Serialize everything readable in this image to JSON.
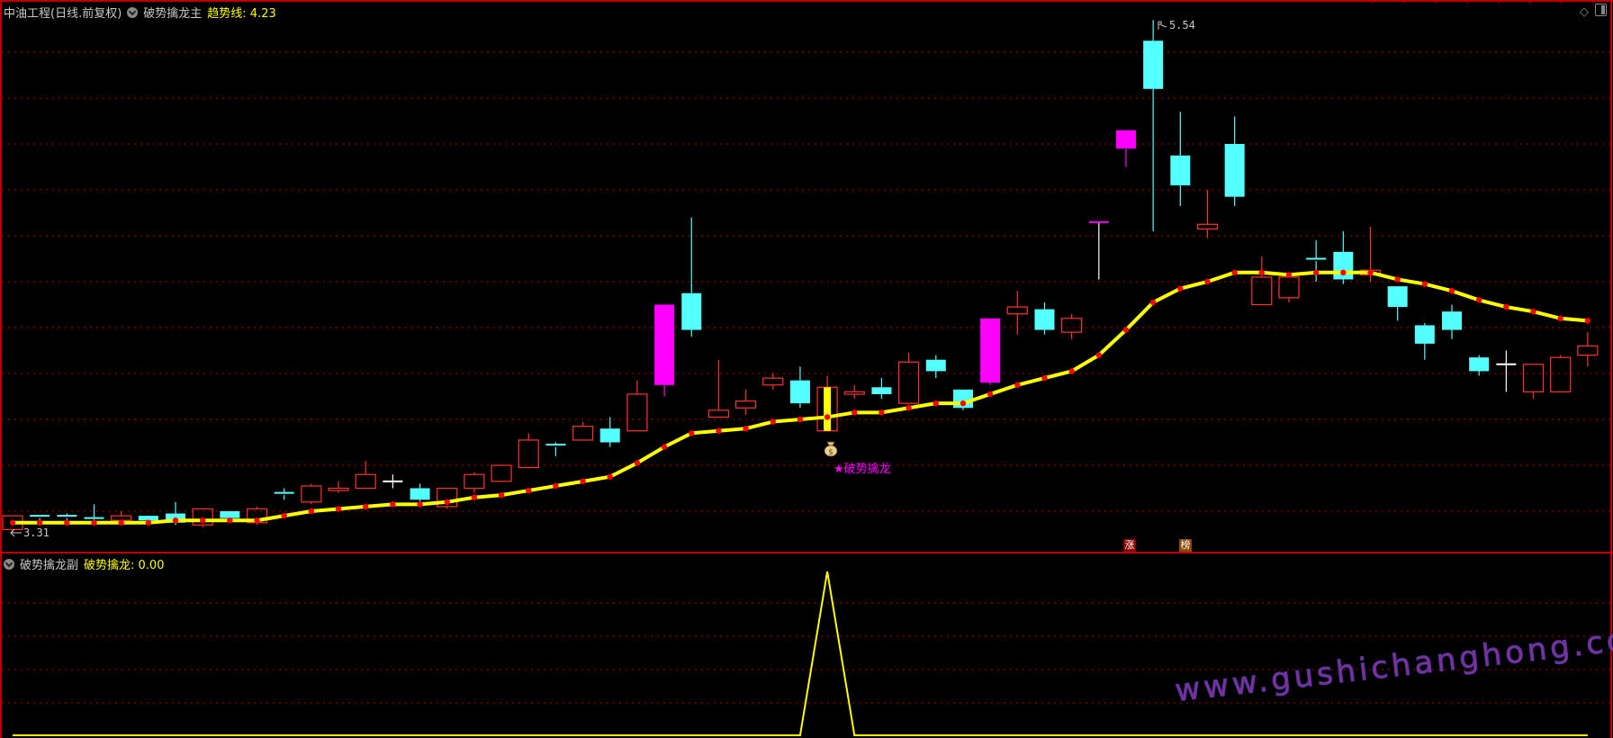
{
  "main_header": {
    "security": "中油工程(日线.前复权)",
    "indicator": "破势擒龙主",
    "trend_label": "趋势线: 4.23"
  },
  "sub_header": {
    "indicator": "破势擒龙副",
    "value_label": "破势擒龙: 0.00"
  },
  "annotations": {
    "low_price": "3.31",
    "high_price": "5.54",
    "signal_text": "★破势擒龙",
    "badge_zhang": "涨",
    "badge_bang": "榜",
    "watermark": "www.gushichanghong.com"
  },
  "colors": {
    "up": "#ff3232",
    "down": "#54ffff",
    "limit_up": "#ff00ff",
    "doji": "#ffffff",
    "trend_line": "#ffff00",
    "trend_dots": "#ff0000",
    "signal_bar": "#ffff00",
    "grid": "#b00000",
    "badge_zhang": "#8b0000",
    "badge_bang": "#8b4a00"
  },
  "icons": [
    "dropdown-circle-icon",
    "money-bag-icon",
    "diamond-icon",
    "panel-toggle-icon",
    "flag-icon",
    "arrow-left-icon"
  ],
  "chart_data": [
    {
      "type": "candlestick",
      "title": "",
      "ylim": [
        3.31,
        5.54
      ],
      "grid": true,
      "signal_index": 30,
      "candles": [
        {
          "o": 3.32,
          "h": 3.38,
          "l": 3.31,
          "c": 3.38,
          "t": "up"
        },
        {
          "o": 3.38,
          "h": 3.38,
          "l": 3.36,
          "c": 3.37,
          "t": "down"
        },
        {
          "o": 3.38,
          "h": 3.39,
          "l": 3.36,
          "c": 3.37,
          "t": "down"
        },
        {
          "o": 3.37,
          "h": 3.43,
          "l": 3.36,
          "c": 3.365,
          "t": "down"
        },
        {
          "o": 3.36,
          "h": 3.4,
          "l": 3.34,
          "c": 3.38,
          "t": "up"
        },
        {
          "o": 3.38,
          "h": 3.38,
          "l": 3.34,
          "c": 3.36,
          "t": "down"
        },
        {
          "o": 3.39,
          "h": 3.44,
          "l": 3.34,
          "c": 3.35,
          "t": "down"
        },
        {
          "o": 3.34,
          "h": 3.41,
          "l": 3.33,
          "c": 3.41,
          "t": "up"
        },
        {
          "o": 3.4,
          "h": 3.4,
          "l": 3.36,
          "c": 3.37,
          "t": "down"
        },
        {
          "o": 3.35,
          "h": 3.42,
          "l": 3.34,
          "c": 3.41,
          "t": "up"
        },
        {
          "o": 3.48,
          "h": 3.5,
          "l": 3.45,
          "c": 3.47,
          "t": "down"
        },
        {
          "o": 3.44,
          "h": 3.52,
          "l": 3.43,
          "c": 3.51,
          "t": "up"
        },
        {
          "o": 3.49,
          "h": 3.53,
          "l": 3.48,
          "c": 3.5,
          "t": "up"
        },
        {
          "o": 3.5,
          "h": 3.62,
          "l": 3.5,
          "c": 3.56,
          "t": "up"
        },
        {
          "o": 3.53,
          "h": 3.56,
          "l": 3.5,
          "c": 3.53,
          "t": "doji"
        },
        {
          "o": 3.5,
          "h": 3.52,
          "l": 3.44,
          "c": 3.45,
          "t": "down"
        },
        {
          "o": 3.42,
          "h": 3.5,
          "l": 3.41,
          "c": 3.5,
          "t": "up"
        },
        {
          "o": 3.5,
          "h": 3.57,
          "l": 3.48,
          "c": 3.56,
          "t": "up"
        },
        {
          "o": 3.53,
          "h": 3.6,
          "l": 3.53,
          "c": 3.6,
          "t": "up"
        },
        {
          "o": 3.59,
          "h": 3.74,
          "l": 3.59,
          "c": 3.71,
          "t": "up"
        },
        {
          "o": 3.69,
          "h": 3.7,
          "l": 3.64,
          "c": 3.68,
          "t": "down"
        },
        {
          "o": 3.71,
          "h": 3.79,
          "l": 3.71,
          "c": 3.77,
          "t": "up"
        },
        {
          "o": 3.76,
          "h": 3.81,
          "l": 3.68,
          "c": 3.7,
          "t": "down"
        },
        {
          "o": 3.75,
          "h": 3.97,
          "l": 3.75,
          "c": 3.91,
          "t": "up"
        },
        {
          "o": 3.95,
          "h": 4.3,
          "l": 3.9,
          "c": 4.3,
          "t": "limit"
        },
        {
          "o": 4.35,
          "h": 4.68,
          "l": 4.16,
          "c": 4.19,
          "t": "down"
        },
        {
          "o": 3.81,
          "h": 4.06,
          "l": 3.81,
          "c": 3.84,
          "t": "up"
        },
        {
          "o": 3.85,
          "h": 3.93,
          "l": 3.82,
          "c": 3.88,
          "t": "up"
        },
        {
          "o": 3.95,
          "h": 4.0,
          "l": 3.93,
          "c": 3.98,
          "t": "up"
        },
        {
          "o": 3.97,
          "h": 4.03,
          "l": 3.85,
          "c": 3.87,
          "t": "down"
        },
        {
          "o": 3.75,
          "h": 3.99,
          "l": 3.75,
          "c": 3.94,
          "t": "up"
        },
        {
          "o": 3.91,
          "h": 3.95,
          "l": 3.89,
          "c": 3.92,
          "t": "up"
        },
        {
          "o": 3.94,
          "h": 3.98,
          "l": 3.89,
          "c": 3.91,
          "t": "down"
        },
        {
          "o": 3.87,
          "h": 4.09,
          "l": 3.87,
          "c": 4.05,
          "t": "up"
        },
        {
          "o": 4.06,
          "h": 4.08,
          "l": 3.98,
          "c": 4.01,
          "t": "down"
        },
        {
          "o": 3.93,
          "h": 3.93,
          "l": 3.84,
          "c": 3.85,
          "t": "down"
        },
        {
          "o": 3.96,
          "h": 4.24,
          "l": 3.95,
          "c": 4.24,
          "t": "limit"
        },
        {
          "o": 4.26,
          "h": 4.36,
          "l": 4.17,
          "c": 4.29,
          "t": "up"
        },
        {
          "o": 4.28,
          "h": 4.31,
          "l": 4.17,
          "c": 4.19,
          "t": "down"
        },
        {
          "o": 4.18,
          "h": 4.26,
          "l": 4.15,
          "c": 4.24,
          "t": "up"
        },
        {
          "o": 4.66,
          "h": 4.66,
          "l": 4.41,
          "c": 4.66,
          "t": "limit"
        },
        {
          "o": 4.98,
          "h": 5.06,
          "l": 4.9,
          "c": 5.06,
          "t": "limit"
        },
        {
          "o": 5.45,
          "h": 5.54,
          "l": 4.62,
          "c": 5.24,
          "t": "down"
        },
        {
          "o": 4.95,
          "h": 5.14,
          "l": 4.73,
          "c": 4.82,
          "t": "down"
        },
        {
          "o": 4.63,
          "h": 4.8,
          "l": 4.59,
          "c": 4.65,
          "t": "up"
        },
        {
          "o": 5.0,
          "h": 5.12,
          "l": 4.73,
          "c": 4.77,
          "t": "down"
        },
        {
          "o": 4.3,
          "h": 4.51,
          "l": 4.3,
          "c": 4.42,
          "t": "up"
        },
        {
          "o": 4.33,
          "h": 4.43,
          "l": 4.31,
          "c": 4.42,
          "t": "up"
        },
        {
          "o": 4.5,
          "h": 4.58,
          "l": 4.4,
          "c": 4.49,
          "t": "down"
        },
        {
          "o": 4.53,
          "h": 4.62,
          "l": 4.39,
          "c": 4.41,
          "t": "down"
        },
        {
          "o": 4.43,
          "h": 4.64,
          "l": 4.4,
          "c": 4.45,
          "t": "up"
        },
        {
          "o": 4.38,
          "h": 4.38,
          "l": 4.23,
          "c": 4.29,
          "t": "down"
        },
        {
          "o": 4.21,
          "h": 4.22,
          "l": 4.06,
          "c": 4.13,
          "t": "down"
        },
        {
          "o": 4.27,
          "h": 4.3,
          "l": 4.15,
          "c": 4.19,
          "t": "down"
        },
        {
          "o": 4.07,
          "h": 4.08,
          "l": 3.99,
          "c": 4.01,
          "t": "down"
        },
        {
          "o": 4.04,
          "h": 4.1,
          "l": 3.92,
          "c": 4.04,
          "t": "doji"
        },
        {
          "o": 3.92,
          "h": 4.04,
          "l": 3.89,
          "c": 4.04,
          "t": "up"
        },
        {
          "o": 3.92,
          "h": 4.08,
          "l": 3.92,
          "c": 4.07,
          "t": "up"
        },
        {
          "o": 4.08,
          "h": 4.18,
          "l": 4.03,
          "c": 4.12,
          "t": "up"
        }
      ],
      "series": [
        {
          "name": "趋势线",
          "values": [
            3.35,
            3.35,
            3.35,
            3.35,
            3.35,
            3.35,
            3.36,
            3.36,
            3.36,
            3.36,
            3.38,
            3.4,
            3.41,
            3.42,
            3.43,
            3.43,
            3.44,
            3.46,
            3.47,
            3.49,
            3.51,
            3.53,
            3.55,
            3.61,
            3.68,
            3.74,
            3.75,
            3.76,
            3.79,
            3.8,
            3.81,
            3.83,
            3.83,
            3.85,
            3.87,
            3.87,
            3.91,
            3.95,
            3.98,
            4.01,
            4.08,
            4.19,
            4.31,
            4.37,
            4.4,
            4.44,
            4.44,
            4.43,
            4.44,
            4.44,
            4.44,
            4.41,
            4.39,
            4.36,
            4.32,
            4.29,
            4.27,
            4.24,
            4.23
          ]
        }
      ]
    },
    {
      "type": "line",
      "title": "",
      "series": [
        {
          "name": "破势擒龙",
          "values": [
            0,
            0,
            0,
            0,
            0,
            0,
            0,
            0,
            0,
            0,
            0,
            0,
            0,
            0,
            0,
            0,
            0,
            0,
            0,
            0,
            0,
            0,
            0,
            0,
            0,
            0,
            0,
            0,
            0,
            0,
            1,
            0,
            0,
            0,
            0,
            0,
            0,
            0,
            0,
            0,
            0,
            0,
            0,
            0,
            0,
            0,
            0,
            0,
            0,
            0,
            0,
            0,
            0,
            0,
            0,
            0,
            0,
            0,
            0
          ]
        }
      ]
    }
  ]
}
